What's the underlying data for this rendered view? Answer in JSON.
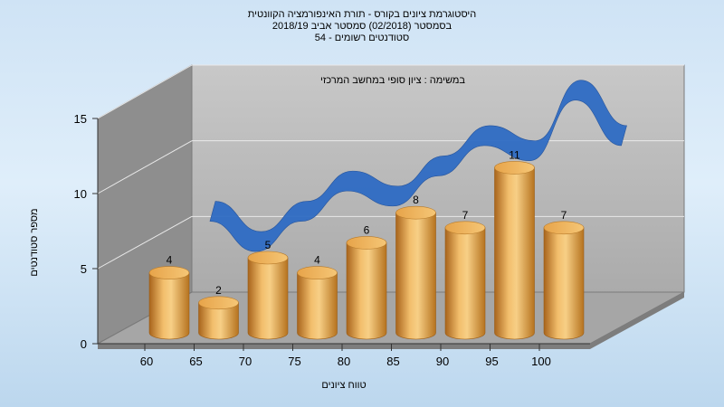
{
  "title": {
    "line1": "היסטוגרמת ציונים בקורס - תורת האינפורמציה הקוונטית",
    "line2": "בסמסטר  (02/2018)  סמסטר אביב 2018/19",
    "line3": "סטודנטים רשומים - 54"
  },
  "chart_data": {
    "type": "bar",
    "subtitle": "במשימה : ציון סופי במחשב המרכזי",
    "xlabel": "טווח ציונים",
    "ylabel": "מספר סטודנטים",
    "x_ticks": [
      "60",
      "65",
      "70",
      "75",
      "80",
      "85",
      "90",
      "95",
      "100"
    ],
    "y_ticks": [
      "0",
      "5",
      "10",
      "15"
    ],
    "ylim": [
      0,
      15
    ],
    "categories": [
      "60",
      "65",
      "70",
      "75",
      "80",
      "85",
      "90",
      "95",
      "100"
    ],
    "values": [
      4,
      2,
      5,
      4,
      6,
      8,
      7,
      11,
      7
    ],
    "trend_values": [
      6,
      4,
      6,
      8,
      7,
      9,
      11,
      10,
      14,
      11
    ],
    "grid": true,
    "colors": {
      "bar": "#e3a145",
      "trend": "#2f6cc4",
      "back_wall": "#b9b9b9",
      "side_wall": "#8e8e8e",
      "floor": "#a6a6a6"
    }
  }
}
